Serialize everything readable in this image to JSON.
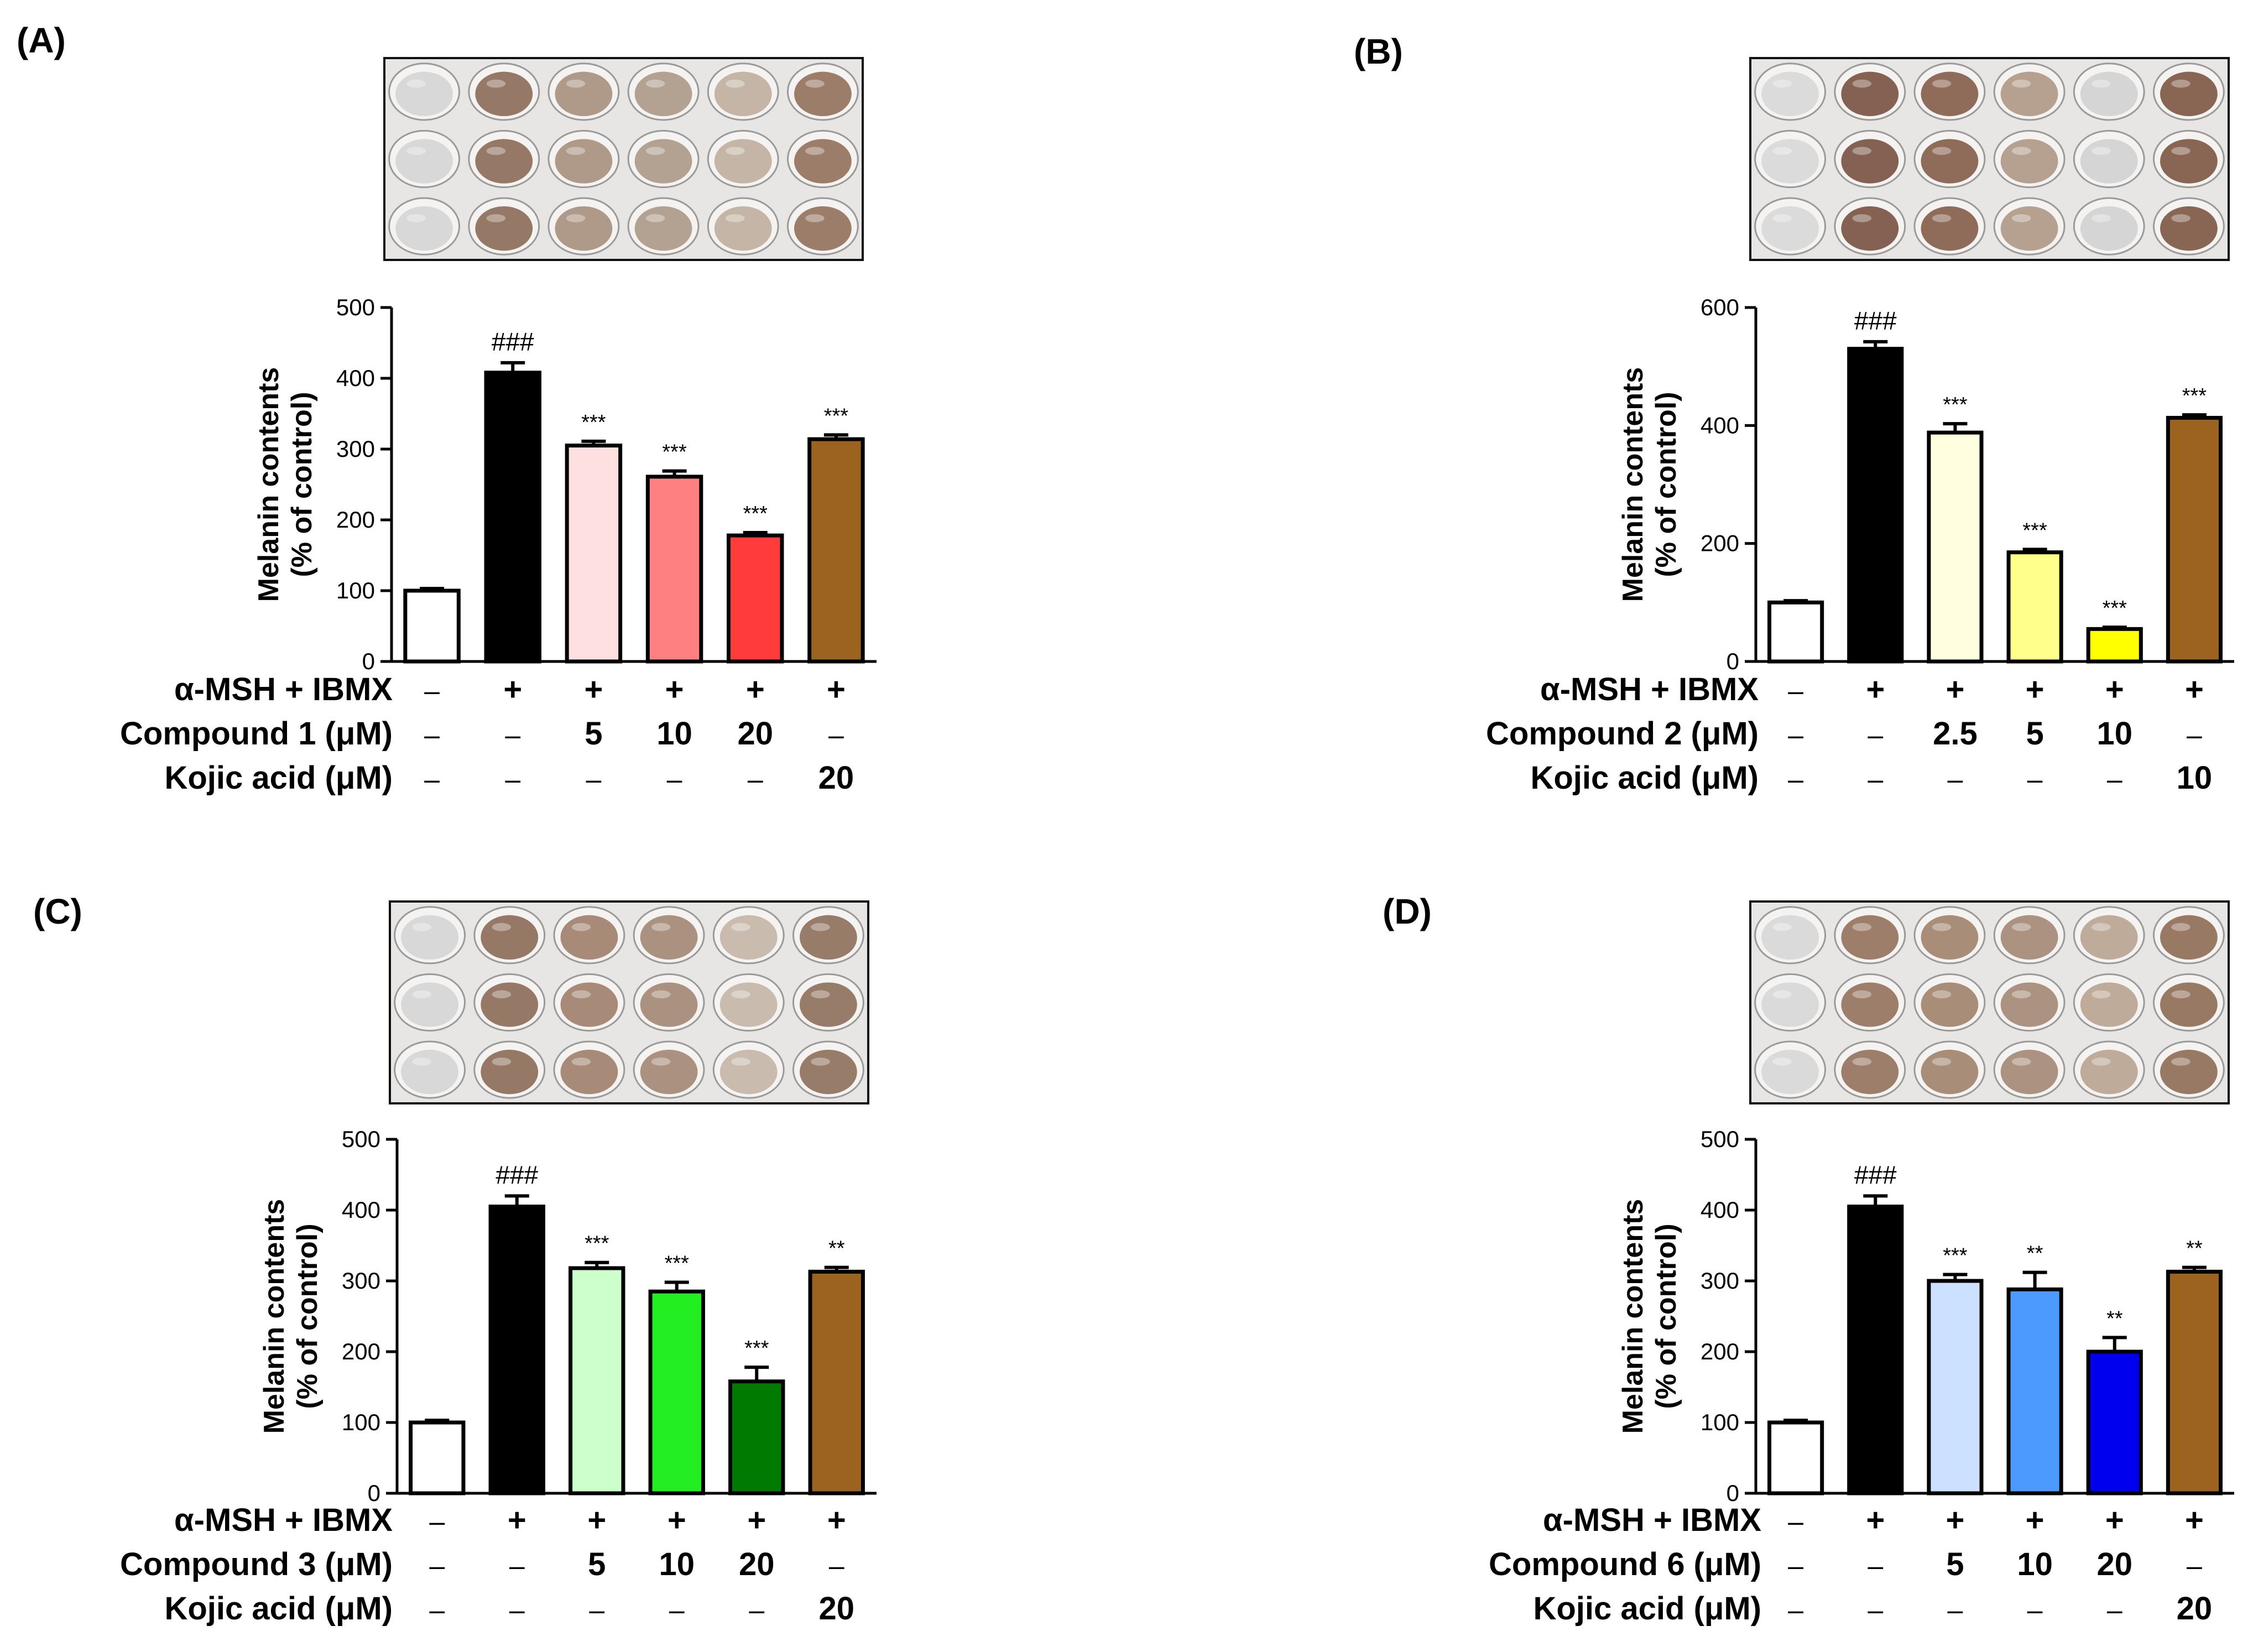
{
  "figure": {
    "description_note": "Four-panel melanin contents bar chart figure",
    "panel_labels": [
      "(A)",
      "(B)",
      "(C)",
      "(D)"
    ]
  },
  "chart_data": [
    {
      "panel": "(A)",
      "type": "bar",
      "ylabel_line1": "Melanin contents",
      "ylabel_line2": "(% of control)",
      "ylim": [
        0,
        500
      ],
      "yticks": [
        0,
        100,
        200,
        300,
        400,
        500
      ],
      "values": [
        100,
        408,
        305,
        261,
        178,
        314
      ],
      "errors": [
        3,
        14,
        6,
        8,
        4,
        6
      ],
      "significance": [
        "",
        "###",
        "***",
        "***",
        "***",
        "***"
      ],
      "bar_colors": [
        "#ffffff",
        "#000000",
        "#ffe0e0",
        "#ff8080",
        "#ff3b3b",
        "#9b6220"
      ],
      "rows": [
        {
          "label": "α-MSH + IBMX",
          "cells": [
            "–",
            "+",
            "+",
            "+",
            "+",
            "+"
          ]
        },
        {
          "label": "Compound 1 (μM)",
          "cells": [
            "–",
            "–",
            "5",
            "10",
            "20",
            "–"
          ]
        },
        {
          "label": "Kojic acid (μM)",
          "cells": [
            "–",
            "–",
            "–",
            "–",
            "–",
            "20"
          ]
        }
      ]
    },
    {
      "panel": "(B)",
      "type": "bar",
      "ylabel_line1": "Melanin contents",
      "ylabel_line2": "(% of control)",
      "ylim": [
        0,
        600
      ],
      "yticks": [
        0,
        200,
        400,
        600
      ],
      "values": [
        100,
        530,
        388,
        185,
        55,
        413
      ],
      "errors": [
        3,
        12,
        15,
        5,
        3,
        5
      ],
      "significance": [
        "",
        "###",
        "***",
        "***",
        "***",
        "***"
      ],
      "bar_colors": [
        "#ffffff",
        "#000000",
        "#ffffe0",
        "#ffff8a",
        "#ffff00",
        "#9b6220"
      ],
      "rows": [
        {
          "label": "α-MSH + IBMX",
          "cells": [
            "–",
            "+",
            "+",
            "+",
            "+",
            "+"
          ]
        },
        {
          "label": "Compound 2 (μM)",
          "cells": [
            "–",
            "–",
            "2.5",
            "5",
            "10",
            "–"
          ]
        },
        {
          "label": "Kojic acid (μM)",
          "cells": [
            "–",
            "–",
            "–",
            "–",
            "–",
            "10"
          ]
        }
      ]
    },
    {
      "panel": "(C)",
      "type": "bar",
      "ylabel_line1": "Melanin contents",
      "ylabel_line2": "(% of control)",
      "ylim": [
        0,
        500
      ],
      "yticks": [
        0,
        100,
        200,
        300,
        400,
        500
      ],
      "values": [
        100,
        405,
        318,
        285,
        158,
        313
      ],
      "errors": [
        3,
        15,
        8,
        13,
        20,
        6
      ],
      "significance": [
        "",
        "###",
        "***",
        "***",
        "***",
        "**"
      ],
      "bar_colors": [
        "#ffffff",
        "#000000",
        "#ccffcc",
        "#22ee22",
        "#007a00",
        "#9b6220"
      ],
      "rows": [
        {
          "label": "α-MSH + IBMX",
          "cells": [
            "–",
            "+",
            "+",
            "+",
            "+",
            "+"
          ]
        },
        {
          "label": "Compound 3 (μM)",
          "cells": [
            "–",
            "–",
            "5",
            "10",
            "20",
            "–"
          ]
        },
        {
          "label": "Kojic acid (μM)",
          "cells": [
            "–",
            "–",
            "–",
            "–",
            "–",
            "20"
          ]
        }
      ]
    },
    {
      "panel": "(D)",
      "type": "bar",
      "ylabel_line1": "Melanin contents",
      "ylabel_line2": "(% of control)",
      "ylim": [
        0,
        500
      ],
      "yticks": [
        0,
        100,
        200,
        300,
        400,
        500
      ],
      "values": [
        100,
        405,
        300,
        288,
        200,
        313
      ],
      "errors": [
        3,
        15,
        9,
        24,
        20,
        6
      ],
      "significance": [
        "",
        "###",
        "***",
        "**",
        "**",
        "**"
      ],
      "bar_colors": [
        "#ffffff",
        "#000000",
        "#cce0ff",
        "#4d9aff",
        "#0000ee",
        "#9b6220"
      ],
      "rows": [
        {
          "label": "α-MSH + IBMX",
          "cells": [
            "–",
            "+",
            "+",
            "+",
            "+",
            "+"
          ]
        },
        {
          "label": "Compound 6 (μM)",
          "cells": [
            "–",
            "–",
            "5",
            "10",
            "20",
            "–"
          ]
        },
        {
          "label": "Kojic acid (μM)",
          "cells": [
            "–",
            "–",
            "–",
            "–",
            "–",
            "20"
          ]
        }
      ]
    }
  ],
  "plate_images": [
    {
      "panel": "(A)",
      "well_colors": [
        "#d6d6d6",
        "#8d6e5a",
        "#a8917f",
        "#ad9a89",
        "#bfb0a0",
        "#92735e"
      ]
    },
    {
      "panel": "(B)",
      "well_colors": [
        "#d9d9d9",
        "#7a5544",
        "#86604c",
        "#b09a88",
        "#d2d2d2",
        "#7f5a45"
      ]
    },
    {
      "panel": "(C)",
      "well_colors": [
        "#d6d6d6",
        "#8d6e5a",
        "#9f826e",
        "#a48975",
        "#c4b7a8",
        "#8f725e"
      ]
    },
    {
      "panel": "(D)",
      "well_colors": [
        "#d8d8d8",
        "#94745e",
        "#a1846f",
        "#a58a76",
        "#b8a592",
        "#8f6f58"
      ]
    }
  ]
}
